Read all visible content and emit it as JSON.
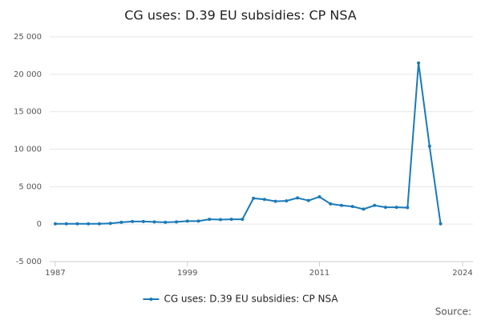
{
  "chart_data": {
    "type": "line",
    "title": "CG uses: D.39 EU subsidies: CP NSA",
    "x": [
      1987,
      1988,
      1989,
      1990,
      1991,
      1992,
      1993,
      1994,
      1995,
      1996,
      1997,
      1998,
      1999,
      2000,
      2001,
      2002,
      2003,
      2004,
      2005,
      2006,
      2007,
      2008,
      2009,
      2010,
      2011,
      2012,
      2013,
      2014,
      2015,
      2016,
      2017,
      2018,
      2019,
      2020,
      2021,
      2022
    ],
    "series": [
      {
        "name": "CG uses: D.39 EU subsidies: CP NSA",
        "color": "#1a7ab8",
        "values": [
          50,
          50,
          50,
          50,
          50,
          100,
          250,
          350,
          350,
          300,
          250,
          300,
          400,
          400,
          650,
          600,
          650,
          650,
          3450,
          3300,
          3050,
          3100,
          3500,
          3150,
          3650,
          2700,
          2500,
          2350,
          2000,
          2500,
          2250,
          2250,
          2200,
          21500,
          10400,
          50
        ]
      }
    ],
    "xlim": [
      1987,
      2024
    ],
    "xticks": [
      1987,
      1999,
      2011,
      2024
    ],
    "ylim": [
      -5000,
      25000
    ],
    "yticks": [
      {
        "value": -5000,
        "label": "-5 000"
      },
      0,
      {
        "value": 5000,
        "label": "5 000"
      },
      {
        "value": 10000,
        "label": "10 000"
      },
      {
        "value": 15000,
        "label": "15 000"
      },
      {
        "value": 20000,
        "label": "20 000"
      },
      {
        "value": 25000,
        "label": "25 000"
      }
    ],
    "grid": true,
    "legend": "bottom",
    "source_label": "Source:"
  }
}
